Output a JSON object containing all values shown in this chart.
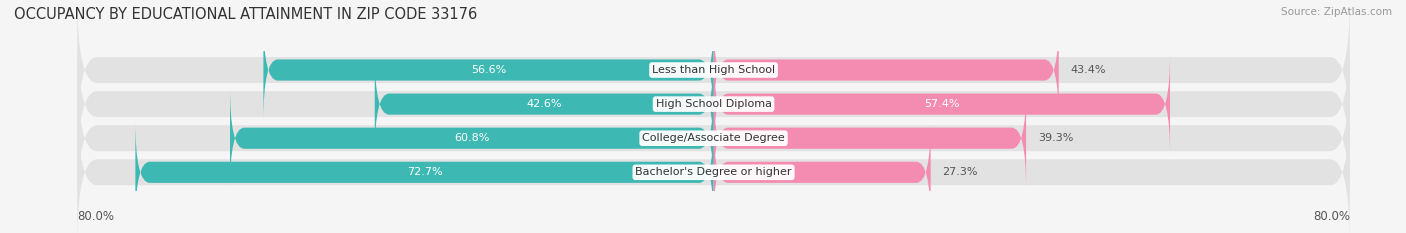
{
  "title": "OCCUPANCY BY EDUCATIONAL ATTAINMENT IN ZIP CODE 33176",
  "source": "Source: ZipAtlas.com",
  "categories": [
    "Less than High School",
    "High School Diploma",
    "College/Associate Degree",
    "Bachelor's Degree or higher"
  ],
  "owner_values": [
    56.6,
    42.6,
    60.8,
    72.7
  ],
  "renter_values": [
    43.4,
    57.4,
    39.3,
    27.3
  ],
  "owner_color": "#3db8b3",
  "renter_color": "#f48cb1",
  "bar_height": 0.62,
  "row_bg_color": "#e2e2e2",
  "xlim": [
    -80,
    80
  ],
  "background_color": "#f5f5f5",
  "title_fontsize": 10.5,
  "source_fontsize": 7.5,
  "label_fontsize": 8,
  "value_fontsize": 8,
  "tick_fontsize": 8.5
}
